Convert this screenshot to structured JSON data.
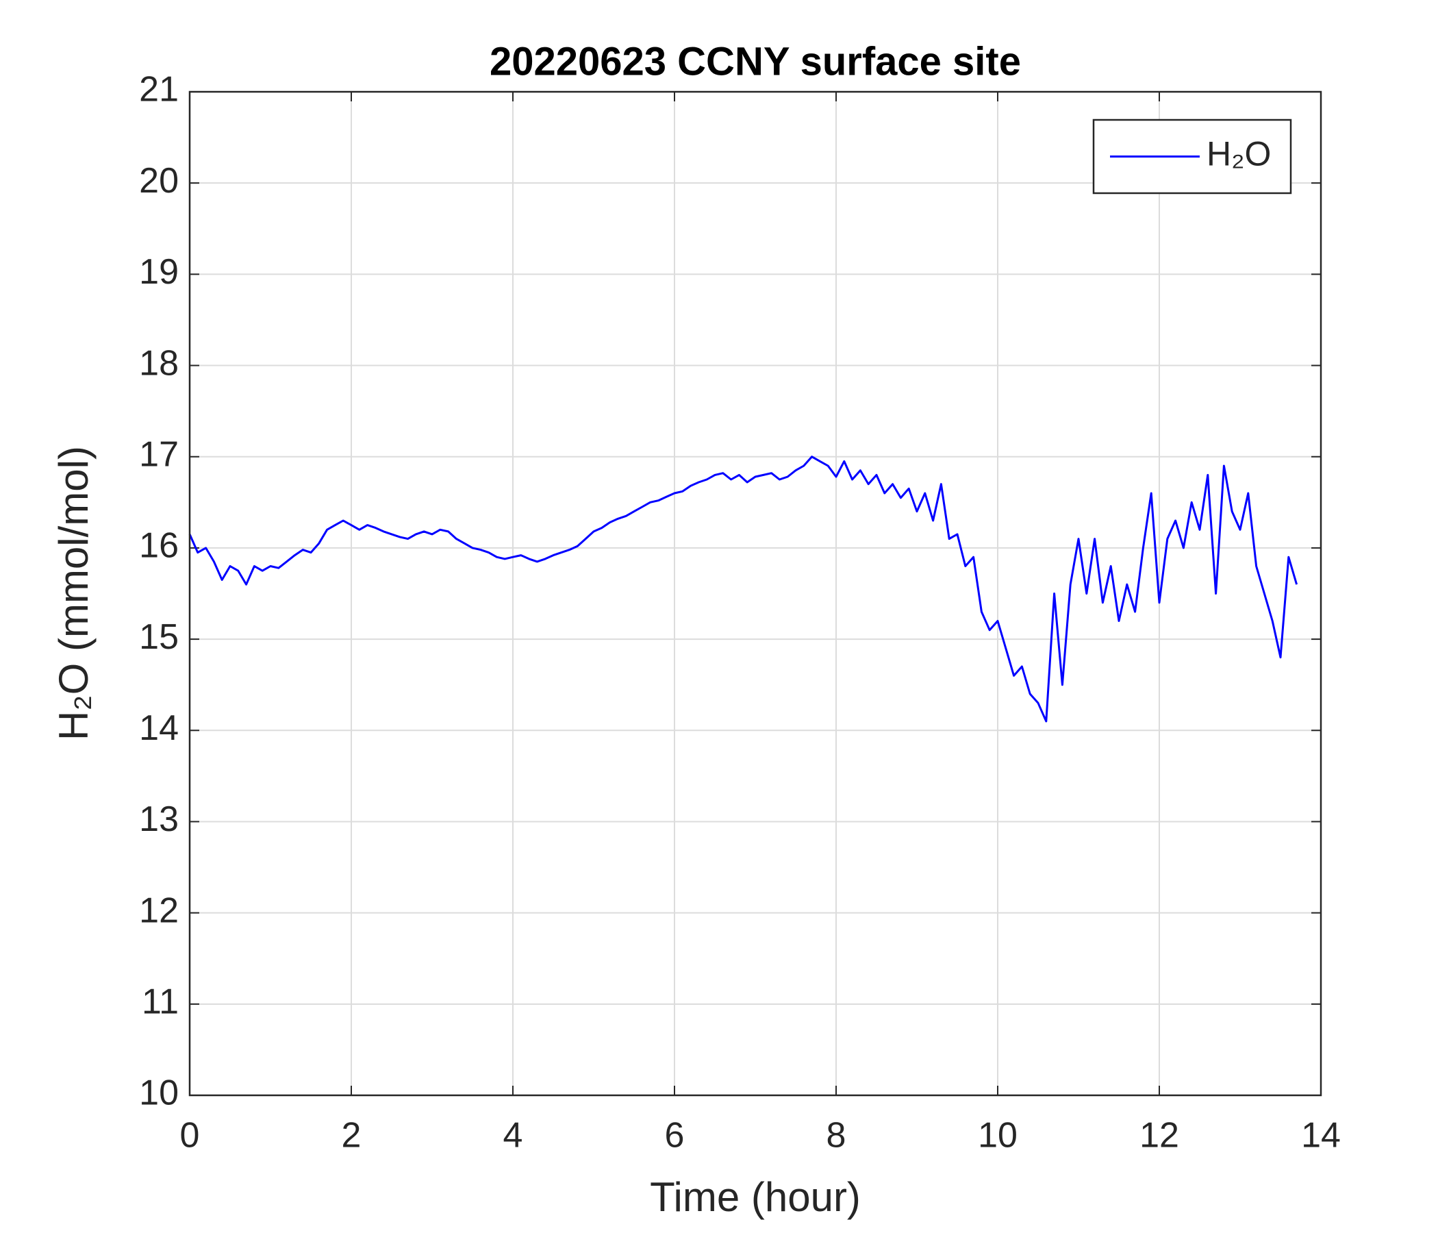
{
  "chart_data": {
    "type": "line",
    "title": "20220623 CCNY surface site",
    "xlabel": "Time (hour)",
    "ylabel": "H₂O (mmol/mol)",
    "x": [
      0,
      0.1,
      0.2,
      0.3,
      0.4,
      0.5,
      0.6,
      0.7,
      0.8,
      0.9,
      1.0,
      1.1,
      1.2,
      1.3,
      1.4,
      1.5,
      1.6,
      1.7,
      1.8,
      1.9,
      2.0,
      2.1,
      2.2,
      2.3,
      2.4,
      2.5,
      2.6,
      2.7,
      2.8,
      2.9,
      3.0,
      3.1,
      3.2,
      3.3,
      3.4,
      3.5,
      3.6,
      3.7,
      3.8,
      3.9,
      4.0,
      4.1,
      4.2,
      4.3,
      4.4,
      4.5,
      4.6,
      4.7,
      4.8,
      4.9,
      5.0,
      5.1,
      5.2,
      5.3,
      5.4,
      5.5,
      5.6,
      5.7,
      5.8,
      5.9,
      6.0,
      6.1,
      6.2,
      6.3,
      6.4,
      6.5,
      6.6,
      6.7,
      6.8,
      6.9,
      7.0,
      7.1,
      7.2,
      7.3,
      7.4,
      7.5,
      7.6,
      7.7,
      7.8,
      7.9,
      8.0,
      8.1,
      8.2,
      8.3,
      8.4,
      8.5,
      8.6,
      8.7,
      8.8,
      8.9,
      9.0,
      9.1,
      9.2,
      9.3,
      9.4,
      9.5,
      9.6,
      9.7,
      9.8,
      9.9,
      10.0,
      10.1,
      10.2,
      10.3,
      10.4,
      10.5,
      10.6,
      10.7,
      10.8,
      10.9,
      11.0,
      11.1,
      11.2,
      11.3,
      11.4,
      11.5,
      11.6,
      11.7,
      11.8,
      11.9,
      12.0,
      12.1,
      12.2,
      12.3,
      12.4,
      12.5,
      12.6,
      12.7,
      12.8,
      12.9,
      13.0,
      13.1,
      13.2,
      13.3,
      13.4,
      13.5,
      13.6,
      13.7
    ],
    "series": [
      {
        "name": "H₂O",
        "color": "#0000ff",
        "values": [
          16.15,
          15.95,
          16.0,
          15.85,
          15.65,
          15.8,
          15.75,
          15.6,
          15.8,
          15.75,
          15.8,
          15.78,
          15.85,
          15.92,
          15.98,
          15.95,
          16.05,
          16.2,
          16.25,
          16.3,
          16.25,
          16.2,
          16.25,
          16.22,
          16.18,
          16.15,
          16.12,
          16.1,
          16.15,
          16.18,
          16.15,
          16.2,
          16.18,
          16.1,
          16.05,
          16.0,
          15.98,
          15.95,
          15.9,
          15.88,
          15.9,
          15.92,
          15.88,
          15.85,
          15.88,
          15.92,
          15.95,
          15.98,
          16.02,
          16.1,
          16.18,
          16.22,
          16.28,
          16.32,
          16.35,
          16.4,
          16.45,
          16.5,
          16.52,
          16.56,
          16.6,
          16.62,
          16.68,
          16.72,
          16.75,
          16.8,
          16.82,
          16.75,
          16.8,
          16.72,
          16.78,
          16.8,
          16.82,
          16.75,
          16.78,
          16.85,
          16.9,
          17.0,
          16.95,
          16.9,
          16.78,
          16.95,
          16.75,
          16.85,
          16.7,
          16.8,
          16.6,
          16.7,
          16.55,
          16.65,
          16.4,
          16.6,
          16.3,
          16.7,
          16.1,
          16.15,
          15.8,
          15.9,
          15.3,
          15.1,
          15.2,
          14.9,
          14.6,
          14.7,
          14.4,
          14.3,
          14.1,
          15.5,
          14.5,
          15.6,
          16.1,
          15.5,
          16.1,
          15.4,
          15.8,
          15.2,
          15.6,
          15.3,
          16.0,
          16.6,
          15.4,
          16.1,
          16.3,
          16.0,
          16.5,
          16.2,
          16.8,
          15.5,
          16.9,
          16.4,
          16.2,
          16.6,
          15.8,
          15.5,
          15.2,
          14.8,
          15.9,
          15.6
        ]
      }
    ],
    "xlim": [
      0,
      14
    ],
    "xticks": [
      0,
      2,
      4,
      6,
      8,
      10,
      12,
      14
    ],
    "ylim": [
      10,
      21
    ],
    "yticks": [
      10,
      11,
      12,
      13,
      14,
      15,
      16,
      17,
      18,
      19,
      20,
      21
    ],
    "grid": true,
    "legend": "upper right"
  }
}
